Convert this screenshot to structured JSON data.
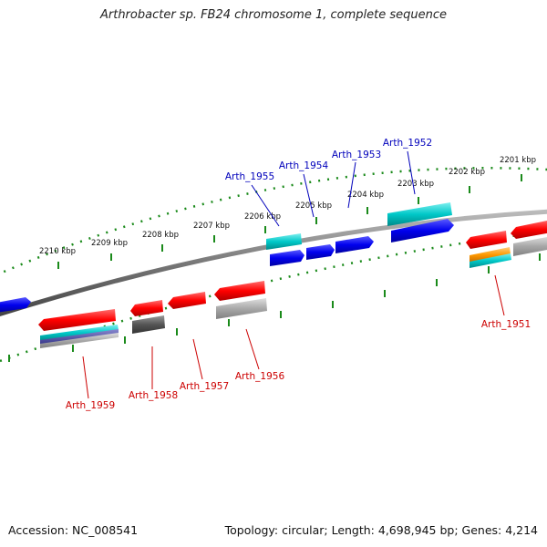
{
  "title": "Arthrobacter sp. FB24 chromosome 1, complete sequence",
  "footer": {
    "accession": "Accession: NC_008541",
    "summary": "Topology: circular; Length: 4,698,945 bp; Genes: 4,214"
  },
  "ruler_top": [
    "2210 kbp",
    "2209 kbp",
    "2208 kbp",
    "2207 kbp",
    "2206 kbp",
    "2205 kbp",
    "2204 kbp",
    "2203 kbp",
    "2202 kbp",
    "2201 kbp"
  ],
  "genes_above": [
    "Arth_1955",
    "Arth_1954",
    "Arth_1953",
    "Arth_1952"
  ],
  "genes_below": [
    "Arth_1959",
    "Arth_1958",
    "Arth_1957",
    "Arth_1956",
    "Arth_1951"
  ],
  "colors": {
    "forward_cds": "#0000ee",
    "reverse_cds": "#ee0000",
    "rna_feature": "#00c8c8",
    "misc_feature": "#ff9900",
    "pseudo_gray": "#9a9a9a",
    "dark_gray": "#555555",
    "backbone": "#777777",
    "tick": "#1a8a1a",
    "label_forward": "#0000bb",
    "label_reverse": "#cc0000"
  }
}
